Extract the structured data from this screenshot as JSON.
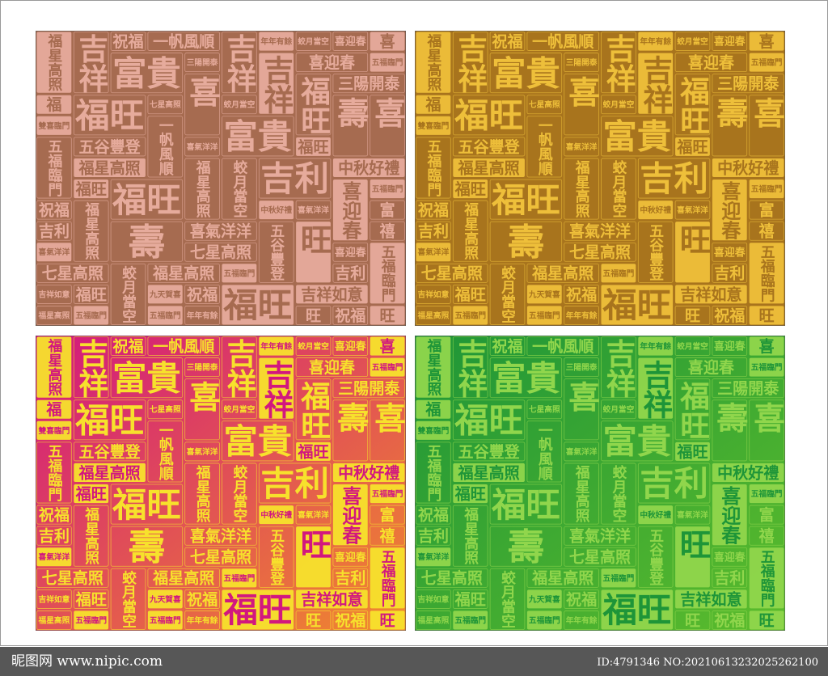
{
  "panels": [
    {
      "background": "#a66b50",
      "background_end": "#a66b50",
      "ink": "#e6ab9c"
    },
    {
      "background": "#a8741d",
      "background_end": "#a8741d",
      "ink": "#eebf3a"
    },
    {
      "background": "#d2177f",
      "background_end": "#f08a2c",
      "ink": "#f7e12c"
    },
    {
      "background": "#1e9538",
      "background_end": "#5cbc2c",
      "ink": "#90d64c"
    }
  ],
  "phrases": [
    "福星高照",
    "大吉大利",
    "吉祥如意",
    "中秋好禮",
    "富貴",
    "五福臨門",
    "吉利",
    "三陽開泰",
    "福",
    "喜",
    "壽",
    "旺",
    "年年有餘",
    "蛟月當空",
    "月白風清",
    "喜迎春",
    "五谷豐登",
    "七星高照",
    "九天賀喜",
    "吉祥",
    "祝福",
    "雙喜臨門",
    "一帆風順",
    "喜氣洋洋",
    "福旺",
    "富",
    "禧"
  ],
  "watermark": {
    "site": "昵图网 www.nipic.com",
    "id": "ID:4791346 NO:20210613232025262100"
  }
}
